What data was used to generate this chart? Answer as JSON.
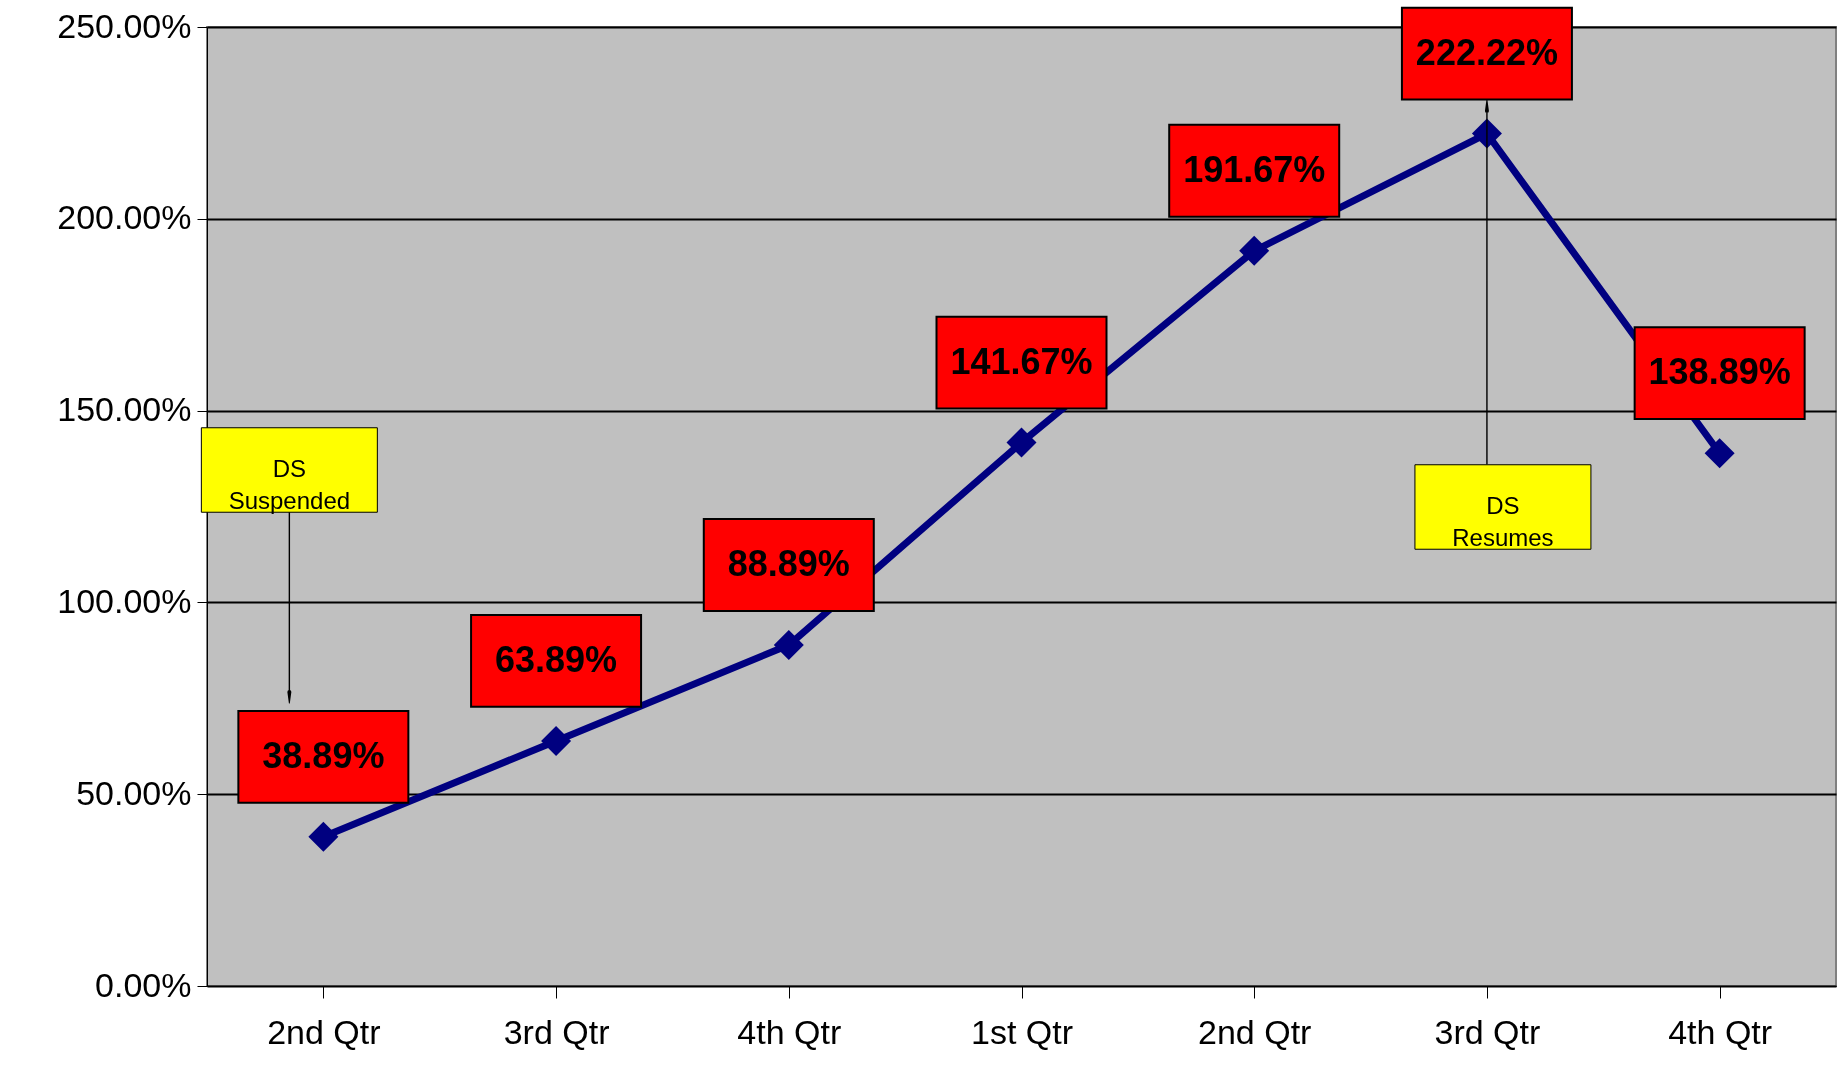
{
  "chart_data": {
    "type": "line",
    "categories": [
      "2nd Qtr",
      "3rd Qtr",
      "4th Qtr",
      "1st Qtr",
      "2nd Qtr",
      "3rd Qtr",
      "4th Qtr"
    ],
    "series": [
      {
        "color": "#000080",
        "values": [
          38.89,
          63.89,
          88.89,
          141.67,
          191.67,
          222.22,
          138.89
        ],
        "value_labels": [
          "38.89%",
          "63.89%",
          "88.89%",
          "141.67%",
          "191.67%",
          "222.22%",
          "138.89%"
        ]
      }
    ],
    "ylim": [
      0,
      250
    ],
    "yticks": [
      {
        "value": 0,
        "label": "0.00%"
      },
      {
        "value": 50,
        "label": "50.00%"
      },
      {
        "value": 100,
        "label": "100.00%"
      },
      {
        "value": 150,
        "label": "150.00%"
      },
      {
        "value": 200,
        "label": "200.00%"
      },
      {
        "value": 250,
        "label": "250.00%"
      }
    ],
    "grid": "y",
    "marker": "diamond",
    "line_style": "solid",
    "annotations": [
      "DS Suspended",
      "DS Resumes"
    ]
  }
}
